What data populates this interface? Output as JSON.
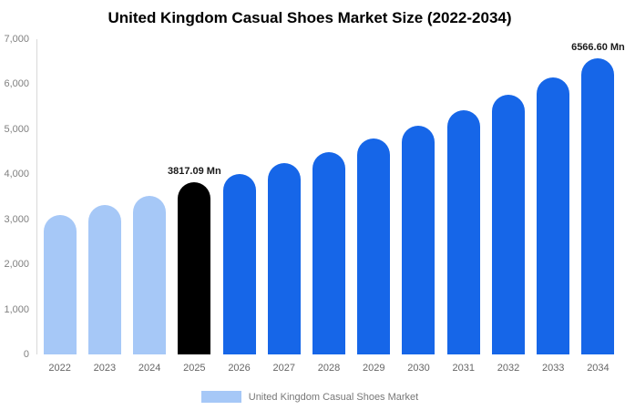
{
  "chart_data": {
    "type": "bar",
    "title": "United Kingdom Casual Shoes Market Size (2022-2034)",
    "categories": [
      "2022",
      "2023",
      "2024",
      "2025",
      "2026",
      "2027",
      "2028",
      "2029",
      "2030",
      "2031",
      "2032",
      "2033",
      "2034"
    ],
    "values": [
      3100,
      3320,
      3530,
      3817.09,
      4000,
      4250,
      4500,
      4800,
      5080,
      5420,
      5760,
      6150,
      6566.6
    ],
    "bar_colors": [
      "#a6c8f7",
      "#a6c8f7",
      "#a6c8f7",
      "#000000",
      "#1666e8",
      "#1666e8",
      "#1666e8",
      "#1666e8",
      "#1666e8",
      "#1666e8",
      "#1666e8",
      "#1666e8",
      "#1666e8"
    ],
    "annotations": [
      {
        "index": 3,
        "text": "3817.09 Mn"
      },
      {
        "index": 12,
        "text": "6566.60 Mn"
      }
    ],
    "ylim": [
      0,
      7000
    ],
    "yticks": [
      "0",
      "1,000",
      "2,000",
      "3,000",
      "4,000",
      "5,000",
      "6,000",
      "7,000"
    ],
    "grid": false,
    "legend": "United Kingdom Casual Shoes Market",
    "legend_position": "bottom",
    "legend_swatch_color": "#a6c8f7",
    "xlabel": "",
    "ylabel": ""
  }
}
